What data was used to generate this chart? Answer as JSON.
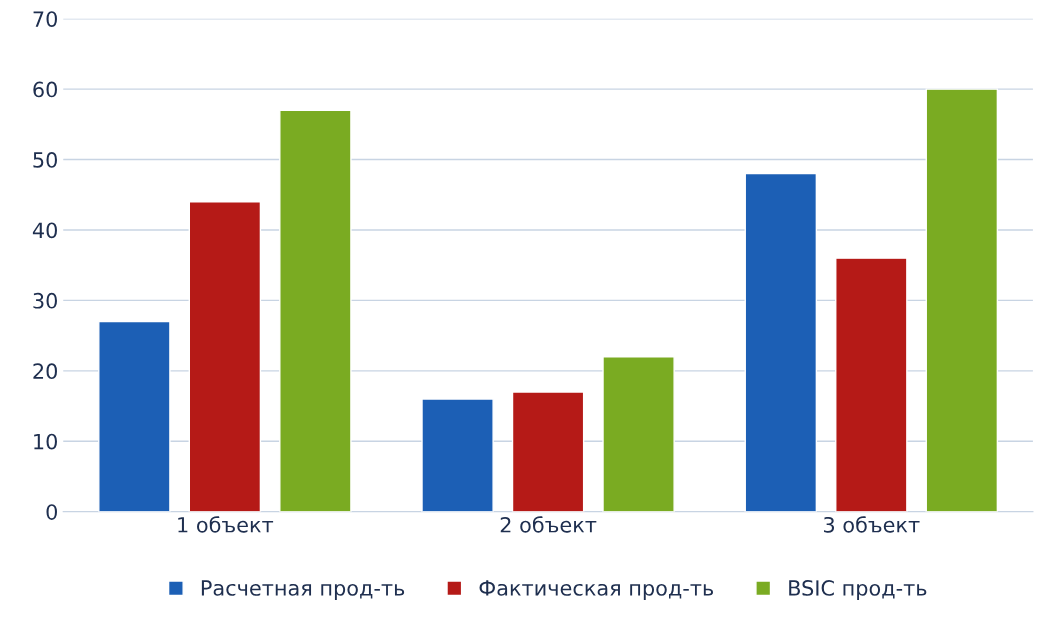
{
  "chart_data": {
    "type": "bar",
    "categories": [
      "1 объект",
      "2 объект",
      "3 объект"
    ],
    "series": [
      {
        "name": "Расчетная прод-ть",
        "color": "#1c5fb5",
        "values": [
          27,
          16,
          48
        ]
      },
      {
        "name": "Фактическая прод-ть",
        "color": "#b51a17",
        "values": [
          44,
          17,
          36
        ]
      },
      {
        "name": "BSIC прод-ть",
        "color": "#7aab22",
        "values": [
          57,
          22,
          60
        ]
      }
    ],
    "ylim": [
      0,
      70
    ],
    "yticks": [
      0,
      10,
      20,
      30,
      40,
      50,
      60,
      70
    ],
    "grid": "y",
    "legend": "bottom"
  }
}
